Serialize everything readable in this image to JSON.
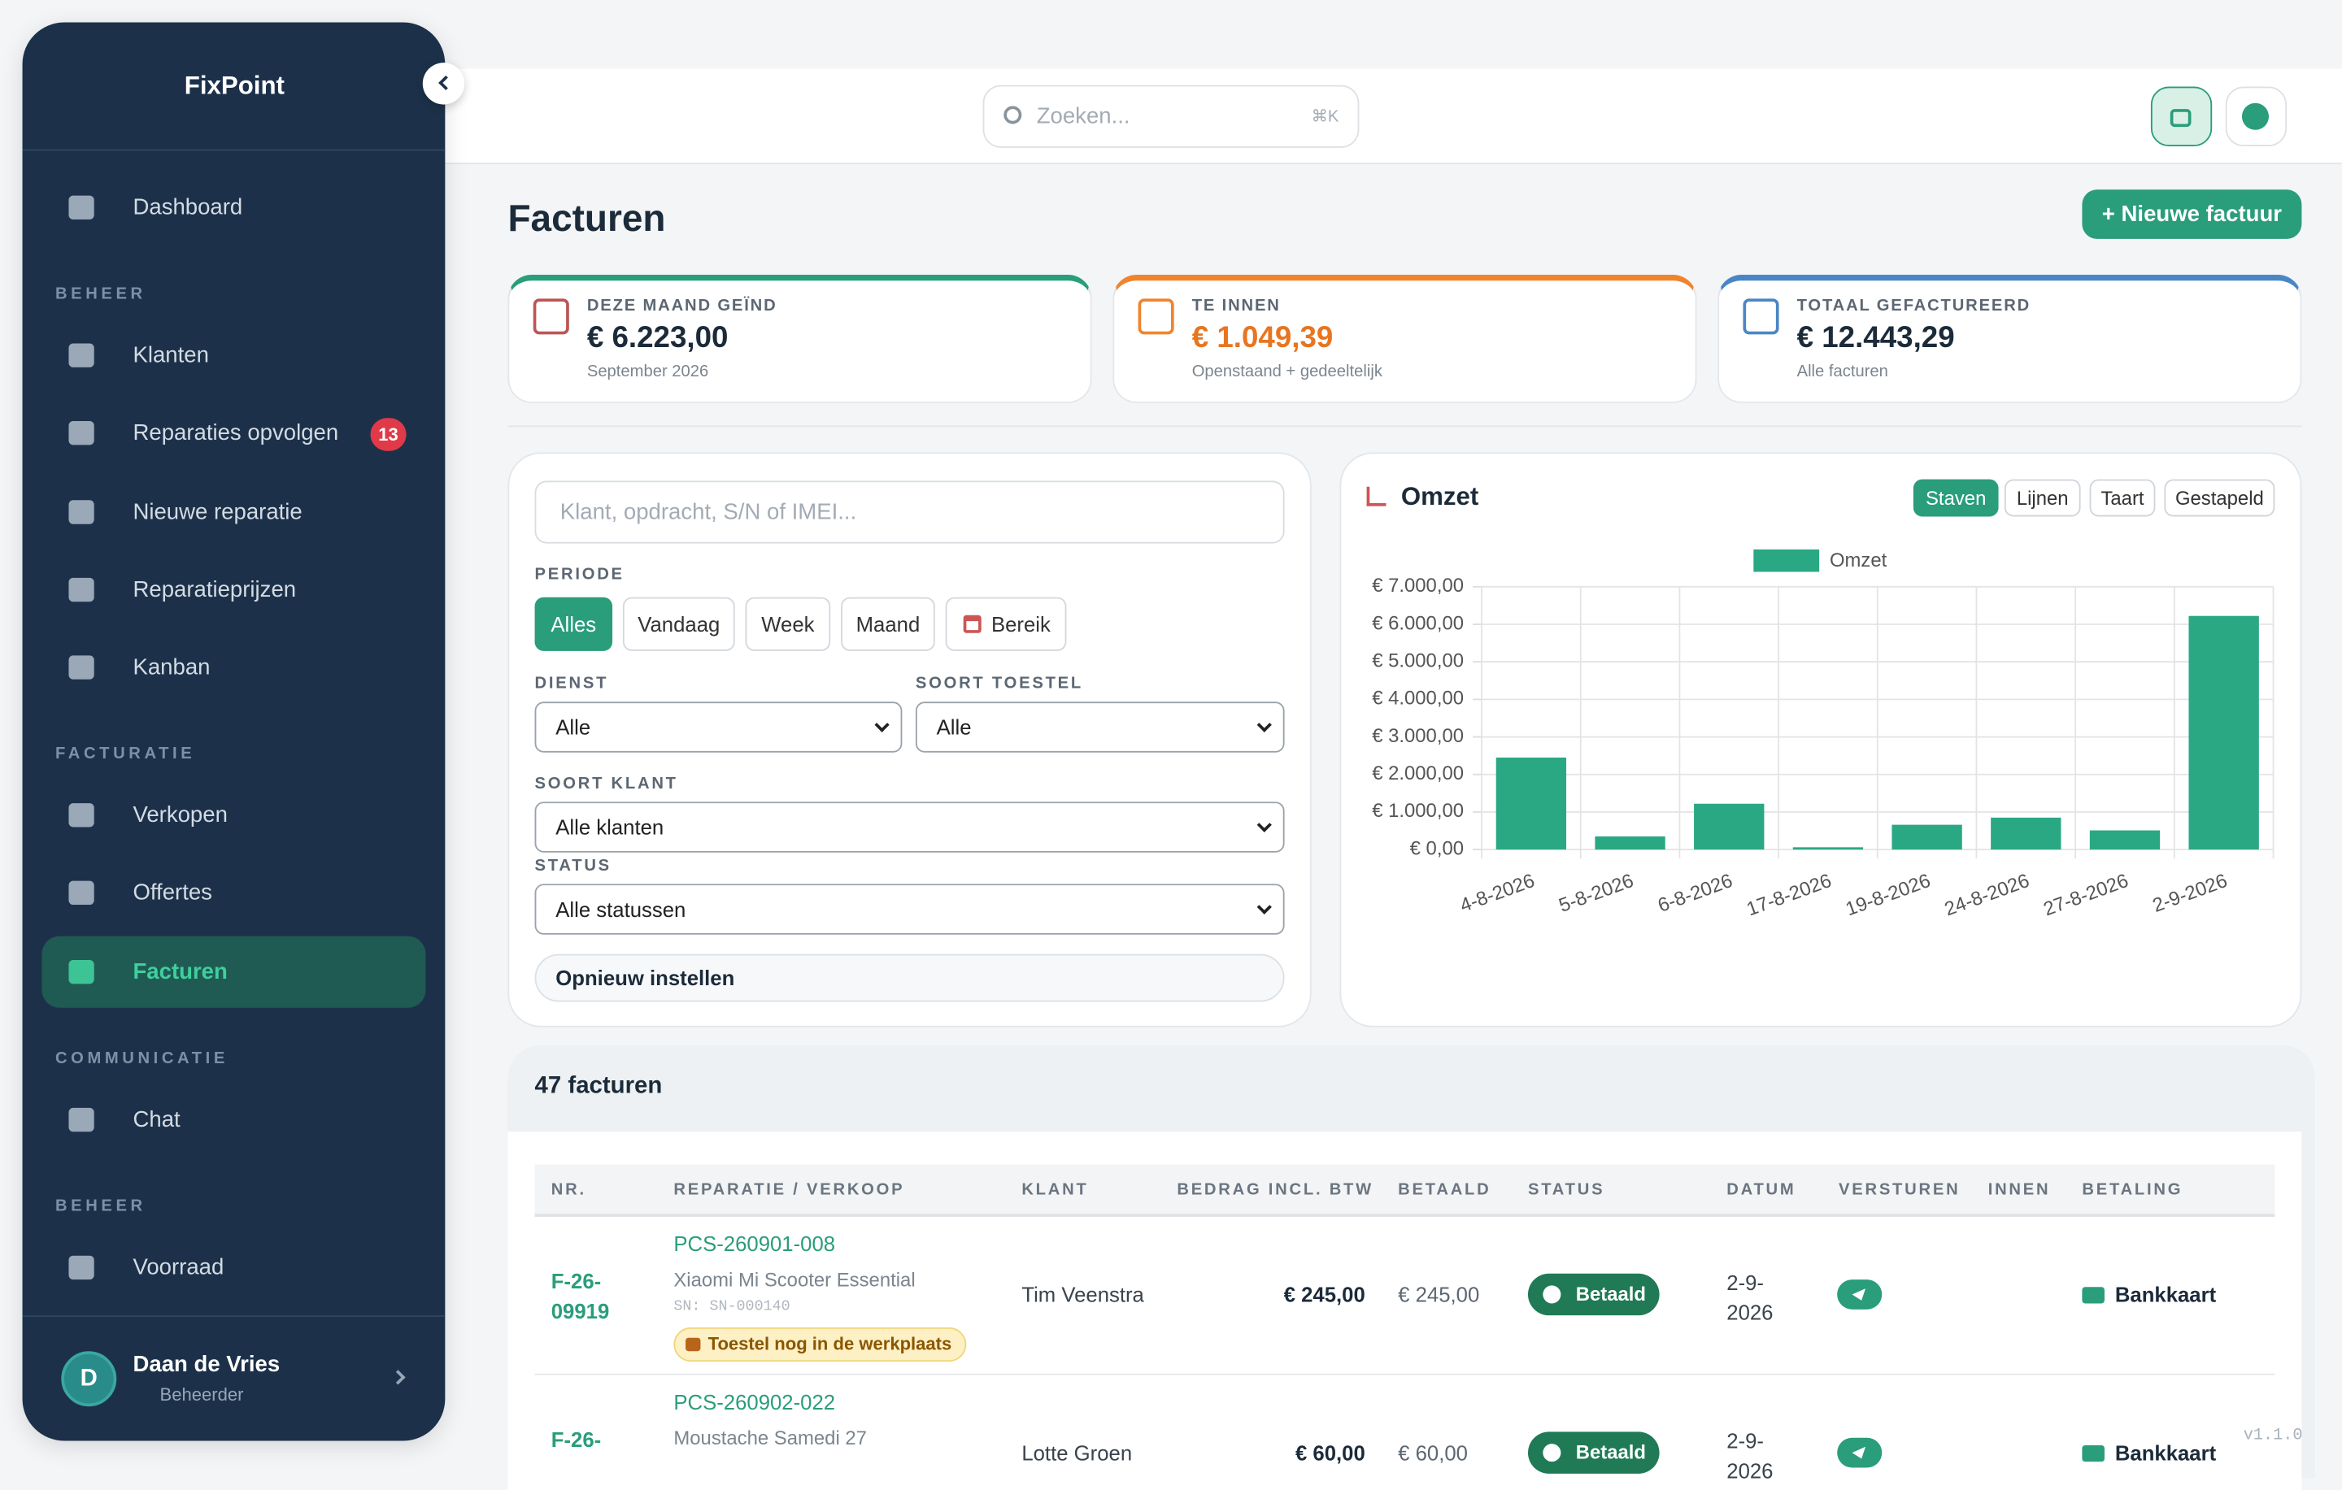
{
  "sidebar": {
    "brand": "FixPoint",
    "dashboard": "Dashboard",
    "sections": [
      {
        "title": "BEHEER",
        "items": [
          "Klanten",
          "Reparaties opvolgen",
          "Nieuwe reparatie",
          "Reparatieprijzen",
          "Kanban"
        ]
      },
      {
        "title": "FACTURATIE",
        "items": [
          "Verkopen",
          "Offertes",
          "Facturen"
        ]
      },
      {
        "title": "COMMUNICATIE",
        "items": [
          "Chat"
        ]
      },
      {
        "title": "BEHEER",
        "items": [
          "Voorraad"
        ]
      }
    ],
    "badge": "13",
    "user": {
      "initial": "D",
      "name": "Daan de Vries",
      "role": "Beheerder"
    }
  },
  "topbar": {
    "search_placeholder": "Zoeken...",
    "shortcut": "⌘K"
  },
  "page": {
    "title": "Facturen",
    "new_button": "+ Nieuwe factuur"
  },
  "stats": [
    {
      "label": "DEZE MAAND GEÏND",
      "value": "€ 6.223,00",
      "sub": "September 2026"
    },
    {
      "label": "TE INNEN",
      "value": "€ 1.049,39",
      "sub": "Openstaand + gedeeltelijk"
    },
    {
      "label": "TOTAAL GEFACTUREERD",
      "value": "€ 12.443,29",
      "sub": "Alle facturen"
    }
  ],
  "filters": {
    "search_placeholder": "Klant, opdracht, S/N of IMEI...",
    "period_label": "PERIODE",
    "periods": [
      "Alles",
      "Vandaag",
      "Week",
      "Maand",
      "Bereik"
    ],
    "service_label": "DIENST",
    "service_value": "Alle",
    "device_label": "SOORT TOESTEL",
    "device_value": "Alle",
    "customer_label": "SOORT KLANT",
    "customer_value": "Alle klanten",
    "status_label": "STATUS",
    "status_value": "Alle statussen",
    "reset": "Opnieuw instellen"
  },
  "chart_controls": [
    "Staven",
    "Lijnen",
    "Taart",
    "Gestapeld"
  ],
  "chart_data": {
    "type": "bar",
    "title": "Omzet",
    "categories": [
      "4-8-2026",
      "5-8-2026",
      "6-8-2026",
      "17-8-2026",
      "19-8-2026",
      "24-8-2026",
      "27-8-2026",
      "2-9-2026"
    ],
    "series": [
      {
        "name": "Omzet",
        "color": "#2aa884",
        "values": [
          2450,
          350,
          1220,
          60,
          660,
          850,
          510,
          6223
        ]
      }
    ],
    "ylim": [
      0,
      7000
    ],
    "yticks": [
      {
        "value": 0,
        "label": "€ 0,00"
      },
      {
        "value": 1000,
        "label": "€ 1.000,00"
      },
      {
        "value": 2000,
        "label": "€ 2.000,00"
      },
      {
        "value": 3000,
        "label": "€ 3.000,00"
      },
      {
        "value": 4000,
        "label": "€ 4.000,00"
      },
      {
        "value": 5000,
        "label": "€ 5.000,00"
      },
      {
        "value": 6000,
        "label": "€ 6.000,00"
      },
      {
        "value": 7000,
        "label": "€ 7.000,00"
      }
    ],
    "grid": true,
    "legend": "top"
  },
  "table": {
    "count": "47 facturen",
    "columns": [
      "NR.",
      "REPARATIE / VERKOOP",
      "KLANT",
      "BEDRAG INCL. BTW",
      "BETAALD",
      "STATUS",
      "DATUM",
      "VERSTUREN",
      "INNEN",
      "BETALING"
    ],
    "rows": [
      {
        "nr": "F-26-09919",
        "repair": "PCS-260901-008",
        "device": "Xiaomi Mi Scooter Essential",
        "serial": "SN: SN-000140",
        "note": "Toestel nog in de werkplaats",
        "customer": "Tim Veenstra",
        "amount": "€ 245,00",
        "paid": "€ 245,00",
        "status": "Betaald",
        "date": "2-9-2026",
        "payment": "Bankkaart"
      },
      {
        "nr": "F-26-",
        "repair": "PCS-260902-022",
        "device": "Moustache Samedi 27",
        "customer": "Lotte Groen",
        "amount": "€ 60,00",
        "paid": "€ 60,00",
        "status": "Betaald",
        "date": "2-9-2026",
        "payment": "Bankkaart"
      }
    ]
  },
  "version": "v1.1.0"
}
